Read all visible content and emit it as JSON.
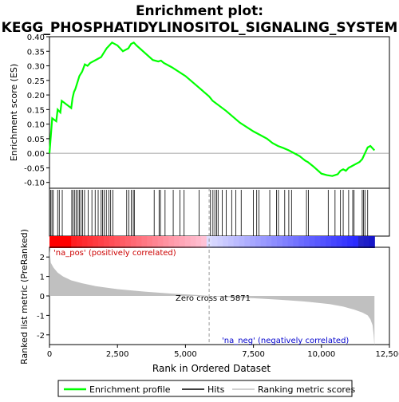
{
  "title_line1": "Enrichment plot:",
  "title_line2": "KEGG_PHOSPHATIDYLINOSITOL_SIGNALING_SYSTEM",
  "top_panel": {
    "ylabel": "Enrichment score (ES)",
    "ylim": [
      -0.12,
      0.4
    ],
    "yticks": [
      "0.40",
      "0.35",
      "0.30",
      "0.25",
      "0.20",
      "0.15",
      "0.10",
      "0.05",
      "0.00",
      "-0.05",
      "-0.10"
    ]
  },
  "bottom_panel": {
    "ylabel": "Ranked list metric (PreRanked)",
    "xlabel": "Rank in Ordered Dataset",
    "yticks": [
      "2",
      "1",
      "0",
      "-1",
      "-2"
    ],
    "xticks": [
      "0",
      "2,500",
      "5,000",
      "7,500",
      "10,000",
      "12,500"
    ],
    "pos_label": "'na_pos' (positively correlated)",
    "neg_label": "'na_neg' (negatively correlated)",
    "zero_cross_label": "Zero cross at 5871",
    "zero_cross": 5871
  },
  "legend": {
    "items": [
      "Enrichment profile",
      "Hits",
      "Ranking metric scores"
    ]
  },
  "colors": {
    "es_line": "#00ff00",
    "hit_line": "#000000",
    "metric_fill": "#c0c0c0",
    "pos_label": "#cc0000",
    "neg_label": "#0000cc",
    "axis": "#000000"
  },
  "chart_data": {
    "type": "line",
    "title": "Enrichment plot: KEGG_PHOSPHATIDYLINOSITOL_SIGNALING_SYSTEM",
    "xlim": [
      0,
      12500
    ],
    "n_genes": 11950,
    "es_profile": {
      "x": [
        0,
        50,
        100,
        250,
        300,
        400,
        450,
        800,
        850,
        900,
        950,
        1000,
        1050,
        1100,
        1200,
        1300,
        1400,
        1500,
        1600,
        1700,
        1800,
        1900,
        2000,
        2100,
        2200,
        2300,
        2500,
        2600,
        2700,
        2800,
        2900,
        3000,
        3100,
        3200,
        3800,
        4000,
        4100,
        4200,
        4500,
        5000,
        5500,
        5871,
        6000,
        6500,
        7000,
        7500,
        7700,
        8000,
        8200,
        8400,
        8600,
        8800,
        9000,
        9200,
        9400,
        9500,
        9700,
        10000,
        10200,
        10400,
        10600,
        10700,
        10800,
        10900,
        11000,
        11100,
        11200,
        11300,
        11400,
        11500,
        11600,
        11700,
        11800,
        11950
      ],
      "y": [
        0.0,
        0.06,
        0.12,
        0.11,
        0.15,
        0.14,
        0.18,
        0.155,
        0.19,
        0.21,
        0.22,
        0.235,
        0.25,
        0.265,
        0.28,
        0.305,
        0.3,
        0.31,
        0.315,
        0.32,
        0.325,
        0.33,
        0.345,
        0.36,
        0.37,
        0.38,
        0.37,
        0.36,
        0.35,
        0.355,
        0.36,
        0.375,
        0.38,
        0.37,
        0.32,
        0.315,
        0.318,
        0.31,
        0.295,
        0.265,
        0.225,
        0.195,
        0.18,
        0.145,
        0.105,
        0.075,
        0.065,
        0.05,
        0.035,
        0.025,
        0.018,
        0.01,
        0.0,
        -0.01,
        -0.025,
        -0.03,
        -0.045,
        -0.07,
        -0.075,
        -0.078,
        -0.072,
        -0.06,
        -0.055,
        -0.06,
        -0.05,
        -0.045,
        -0.04,
        -0.035,
        -0.03,
        -0.02,
        0.0,
        0.02,
        0.025,
        0.01
      ]
    },
    "hits": [
      40,
      90,
      140,
      300,
      360,
      470,
      820,
      870,
      930,
      980,
      1050,
      1100,
      1160,
      1220,
      1290,
      1420,
      1560,
      1680,
      1790,
      1900,
      1950,
      2010,
      2090,
      2180,
      2250,
      2330,
      2840,
      2920,
      3010,
      3080,
      3120,
      3850,
      4030,
      4080,
      4250,
      4550,
      4800,
      4950,
      5500,
      5920,
      6010,
      6080,
      6150,
      6200,
      6350,
      6500,
      6700,
      6850,
      7050,
      7500,
      7620,
      7700,
      8100,
      8350,
      8420,
      8650,
      8800,
      8900,
      9450,
      9520,
      10250,
      10500,
      10700,
      10800,
      11000,
      11150,
      11200,
      11500,
      11550,
      11600,
      11700
    ],
    "metric_profile": {
      "x": [
        0,
        50,
        150,
        300,
        500,
        800,
        1200,
        1700,
        2500,
        3500,
        4500,
        5500,
        5871,
        6500,
        7500,
        8500,
        9500,
        10300,
        10800,
        11200,
        11500,
        11700,
        11800,
        11880,
        11920,
        11950
      ],
      "y": [
        2.4,
        1.7,
        1.45,
        1.2,
        1.0,
        0.8,
        0.65,
        0.5,
        0.35,
        0.22,
        0.12,
        0.04,
        0.0,
        -0.06,
        -0.12,
        -0.2,
        -0.3,
        -0.42,
        -0.55,
        -0.7,
        -0.85,
        -1.0,
        -1.2,
        -1.5,
        -2.0,
        -2.6
      ]
    },
    "bottom_ylim": [
      -2.5,
      2.5
    ]
  }
}
